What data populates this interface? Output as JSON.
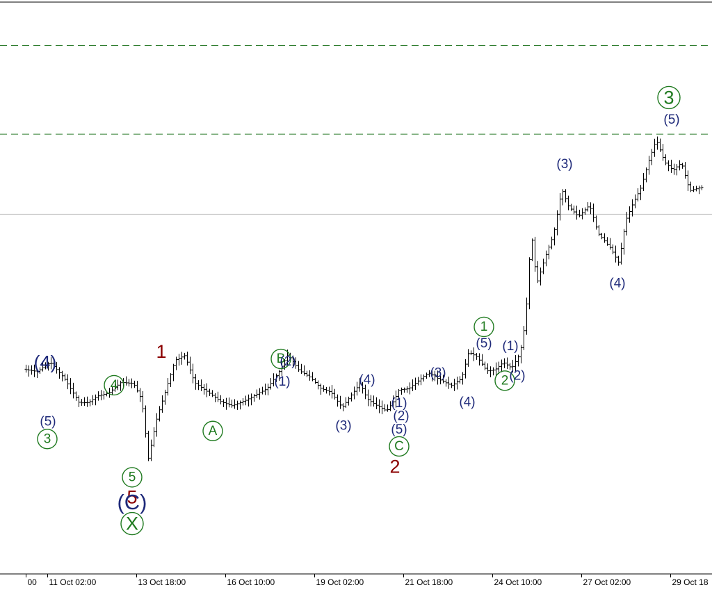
{
  "colors": {
    "background": "#ffffff",
    "candles": "#000000",
    "guide_dashed": "#2f7d2f",
    "guide_solid": "#c0c0c0",
    "label_navy": "#1f2a7a",
    "label_green": "#1f7a1f",
    "label_maroon": "#8b0000"
  },
  "chart_data": {
    "type": "bar",
    "title": "",
    "xlabel": "",
    "ylabel": "",
    "x_tick_labels": [
      "00",
      "11 Oct 02:00",
      "13 Oct 18:00",
      "16 Oct 10:00",
      "19 Oct 02:00",
      "21 Oct 18:00",
      "24 Oct 10:00",
      "27 Oct 02:00",
      "29 Oct 18"
    ],
    "x_tick_hours": [
      -15.3,
      0,
      64,
      128,
      192,
      256,
      320,
      384,
      448
    ],
    "y_axis_labels": "not visible",
    "y_scale_note": "price axis not shown; price values below are in relative chart units (0 = bottom axis line, 100 = top border line)",
    "price_path": [
      {
        "t": -15.3,
        "p": 35.8
      },
      {
        "t": -5,
        "p": 35.4
      },
      {
        "t": 4,
        "p": 37.0
      },
      {
        "t": 14,
        "p": 34.3
      },
      {
        "t": 25,
        "p": 29.9
      },
      {
        "t": 32,
        "p": 30.0
      },
      {
        "t": 38,
        "p": 31.1
      },
      {
        "t": 46,
        "p": 31.6
      },
      {
        "t": 55,
        "p": 33.5
      },
      {
        "t": 64,
        "p": 33.3
      },
      {
        "t": 70,
        "p": 30.4
      },
      {
        "t": 75,
        "p": 19.6
      },
      {
        "t": 77,
        "p": 23.0
      },
      {
        "t": 81,
        "p": 27.4
      },
      {
        "t": 87,
        "p": 32.0
      },
      {
        "t": 94,
        "p": 37.4
      },
      {
        "t": 101,
        "p": 38.2
      },
      {
        "t": 108,
        "p": 33.4
      },
      {
        "t": 117,
        "p": 31.9
      },
      {
        "t": 127,
        "p": 30.1
      },
      {
        "t": 135,
        "p": 29.4
      },
      {
        "t": 145,
        "p": 30.4
      },
      {
        "t": 160,
        "p": 32.4
      },
      {
        "t": 169,
        "p": 35.5
      },
      {
        "t": 175,
        "p": 38.4
      },
      {
        "t": 183,
        "p": 35.6
      },
      {
        "t": 191,
        "p": 34.4
      },
      {
        "t": 199,
        "p": 32.4
      },
      {
        "t": 206,
        "p": 31.8
      },
      {
        "t": 214,
        "p": 29.1
      },
      {
        "t": 221,
        "p": 31.4
      },
      {
        "t": 227,
        "p": 33.3
      },
      {
        "t": 232,
        "p": 30.6
      },
      {
        "t": 238,
        "p": 29.6
      },
      {
        "t": 246,
        "p": 28.5
      },
      {
        "t": 251,
        "p": 30.2
      },
      {
        "t": 255,
        "p": 32.2
      },
      {
        "t": 262,
        "p": 32.4
      },
      {
        "t": 269,
        "p": 33.8
      },
      {
        "t": 276,
        "p": 35.2
      },
      {
        "t": 284,
        "p": 34.0
      },
      {
        "t": 293,
        "p": 32.9
      },
      {
        "t": 300,
        "p": 34.2
      },
      {
        "t": 305,
        "p": 38.8
      },
      {
        "t": 311,
        "p": 38.0
      },
      {
        "t": 318,
        "p": 35.5
      },
      {
        "t": 324,
        "p": 35.7
      },
      {
        "t": 330,
        "p": 37.0
      },
      {
        "t": 336,
        "p": 36.0
      },
      {
        "t": 342,
        "p": 38.5
      },
      {
        "t": 346,
        "p": 44.5
      },
      {
        "t": 350,
        "p": 60.0
      },
      {
        "t": 354,
        "p": 50.7
      },
      {
        "t": 360,
        "p": 55.4
      },
      {
        "t": 366,
        "p": 59.3
      },
      {
        "t": 372,
        "p": 67.3
      },
      {
        "t": 377,
        "p": 64.2
      },
      {
        "t": 384,
        "p": 62.5
      },
      {
        "t": 392,
        "p": 64.5
      },
      {
        "t": 398,
        "p": 59.6
      },
      {
        "t": 407,
        "p": 57.0
      },
      {
        "t": 413,
        "p": 54.4
      },
      {
        "t": 418,
        "p": 61.8
      },
      {
        "t": 423,
        "p": 64.7
      },
      {
        "t": 429,
        "p": 67.6
      },
      {
        "t": 435,
        "p": 72.6
      },
      {
        "t": 440,
        "p": 75.9
      },
      {
        "t": 446,
        "p": 72.0
      },
      {
        "t": 452,
        "p": 70.6
      },
      {
        "t": 458,
        "p": 71.9
      },
      {
        "t": 464,
        "p": 67.0
      },
      {
        "t": 472,
        "p": 67.6
      }
    ],
    "reference_levels": [
      {
        "style": "dashed",
        "p": 92.4
      },
      {
        "style": "dashed",
        "p": 76.9
      },
      {
        "style": "solid",
        "p": 62.9
      }
    ],
    "wave_labels": [
      {
        "text": "(4)",
        "t": -1.5,
        "p": 37.0,
        "style": "plain",
        "color": "label_navy",
        "size": "large"
      },
      {
        "text": "(5)",
        "t": 0.5,
        "p": 26.6,
        "style": "plain",
        "color": "label_navy",
        "size": "medium"
      },
      {
        "text": "3",
        "t": 0,
        "p": 23.6,
        "style": "circle",
        "color": "label_green",
        "size": "medium"
      },
      {
        "text": "4",
        "t": 48,
        "p": 33.0,
        "style": "circle",
        "color": "label_green",
        "size": "medium"
      },
      {
        "text": "1",
        "t": 82,
        "p": 38.9,
        "style": "plain",
        "color": "label_maroon",
        "size": "large"
      },
      {
        "text": "5",
        "t": 61,
        "p": 16.9,
        "style": "circle",
        "color": "label_green",
        "size": "medium"
      },
      {
        "text": "5",
        "t": 61,
        "p": 13.4,
        "style": "plain",
        "color": "label_maroon",
        "size": "large"
      },
      {
        "text": "(C)",
        "t": 61,
        "p": 12.6,
        "style": "plain",
        "color": "label_navy",
        "size": "xlarge"
      },
      {
        "text": "X",
        "t": 61,
        "p": 8.8,
        "style": "circle",
        "color": "label_green",
        "size": "large"
      },
      {
        "text": "A",
        "t": 119,
        "p": 25.0,
        "style": "circle",
        "color": "label_green",
        "size": "medium"
      },
      {
        "text": "B",
        "t": 168,
        "p": 37.6,
        "style": "circle",
        "color": "label_green",
        "size": "medium"
      },
      {
        "text": "(2)",
        "t": 173,
        "p": 37.1,
        "style": "plain",
        "color": "label_navy",
        "size": "medium"
      },
      {
        "text": "(1)",
        "t": 169,
        "p": 33.6,
        "style": "plain",
        "color": "label_navy",
        "size": "medium"
      },
      {
        "text": "(4)",
        "t": 230,
        "p": 33.9,
        "style": "plain",
        "color": "label_navy",
        "size": "medium"
      },
      {
        "text": "(3)",
        "t": 213,
        "p": 25.9,
        "style": "plain",
        "color": "label_navy",
        "size": "medium"
      },
      {
        "text": "(1)",
        "t": 253,
        "p": 29.8,
        "style": "plain",
        "color": "label_navy",
        "size": "medium"
      },
      {
        "text": "(2)",
        "t": 254.5,
        "p": 27.6,
        "style": "plain",
        "color": "label_navy",
        "size": "medium"
      },
      {
        "text": "(5)",
        "t": 253,
        "p": 25.2,
        "style": "plain",
        "color": "label_navy",
        "size": "medium"
      },
      {
        "text": "C",
        "t": 253,
        "p": 22.3,
        "style": "circle",
        "color": "label_green",
        "size": "medium"
      },
      {
        "text": "2",
        "t": 250,
        "p": 18.8,
        "style": "plain",
        "color": "label_maroon",
        "size": "large"
      },
      {
        "text": "(3)",
        "t": 281,
        "p": 35.1,
        "style": "plain",
        "color": "label_navy",
        "size": "medium"
      },
      {
        "text": "(4)",
        "t": 302,
        "p": 30.0,
        "style": "plain",
        "color": "label_navy",
        "size": "medium"
      },
      {
        "text": "1",
        "t": 314,
        "p": 43.2,
        "style": "circle",
        "color": "label_green",
        "size": "medium"
      },
      {
        "text": "(5)",
        "t": 314,
        "p": 40.3,
        "style": "plain",
        "color": "label_navy",
        "size": "medium"
      },
      {
        "text": "(1)",
        "t": 333,
        "p": 39.8,
        "style": "plain",
        "color": "label_navy",
        "size": "medium"
      },
      {
        "text": "2",
        "t": 329,
        "p": 33.8,
        "style": "circle",
        "color": "label_green",
        "size": "medium"
      },
      {
        "text": "(2)",
        "t": 338,
        "p": 34.6,
        "style": "plain",
        "color": "label_navy",
        "size": "medium"
      },
      {
        "text": "(3)",
        "t": 372,
        "p": 71.6,
        "style": "plain",
        "color": "label_navy",
        "size": "medium"
      },
      {
        "text": "(4)",
        "t": 410,
        "p": 50.8,
        "style": "plain",
        "color": "label_navy",
        "size": "medium"
      },
      {
        "text": "3",
        "t": 447,
        "p": 83.3,
        "style": "circle",
        "color": "label_green",
        "size": "large"
      },
      {
        "text": "(5)",
        "t": 449,
        "p": 79.4,
        "style": "plain",
        "color": "label_navy",
        "size": "medium"
      }
    ]
  }
}
